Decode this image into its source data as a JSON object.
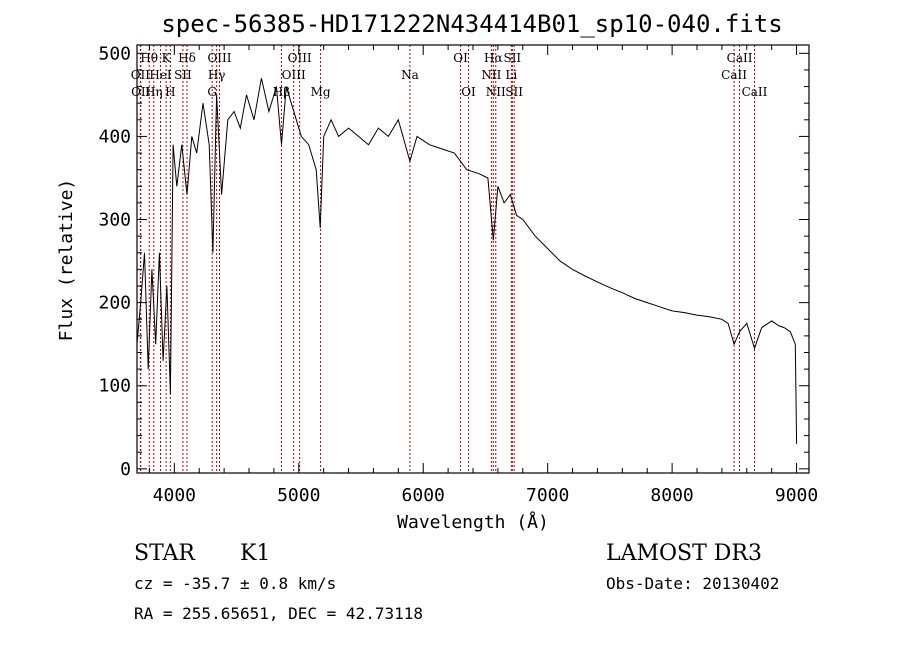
{
  "chart_data": {
    "type": "line",
    "title": "spec-56385-HD171222N434414B01_sp10-040.fits",
    "xlabel": "Wavelength (Å)",
    "ylabel": "Flux (relative)",
    "xlim": [
      3700,
      9100
    ],
    "ylim": [
      -5,
      510
    ],
    "xticks": [
      4000,
      5000,
      6000,
      7000,
      8000,
      9000
    ],
    "yticks": [
      0,
      100,
      200,
      300,
      400,
      500
    ],
    "series": [
      {
        "name": "spectrum",
        "x": [
          3700,
          3730,
          3760,
          3790,
          3820,
          3850,
          3880,
          3910,
          3940,
          3968,
          3990,
          4020,
          4060,
          4102,
          4140,
          4180,
          4230,
          4280,
          4310,
          4340,
          4380,
          4430,
          4480,
          4530,
          4580,
          4640,
          4700,
          4760,
          4820,
          4861,
          4900,
          4940,
          4980,
          5020,
          5080,
          5140,
          5172,
          5200,
          5260,
          5320,
          5400,
          5480,
          5560,
          5640,
          5720,
          5800,
          5893,
          5950,
          6050,
          6150,
          6250,
          6350,
          6450,
          6520,
          6563,
          6600,
          6650,
          6700,
          6750,
          6800,
          6900,
          7000,
          7100,
          7200,
          7300,
          7400,
          7500,
          7600,
          7700,
          7800,
          7900,
          8000,
          8100,
          8200,
          8300,
          8400,
          8450,
          8498,
          8542,
          8600,
          8662,
          8720,
          8800,
          8860,
          8900,
          8950,
          8990,
          9000
        ],
        "y": [
          150,
          200,
          260,
          120,
          240,
          150,
          260,
          130,
          220,
          90,
          390,
          340,
          390,
          330,
          400,
          380,
          440,
          390,
          260,
          450,
          330,
          420,
          430,
          410,
          450,
          420,
          470,
          430,
          460,
          390,
          460,
          440,
          420,
          400,
          390,
          360,
          290,
          400,
          420,
          400,
          410,
          400,
          390,
          410,
          400,
          420,
          370,
          400,
          390,
          385,
          380,
          360,
          355,
          350,
          275,
          340,
          320,
          330,
          305,
          300,
          280,
          265,
          250,
          240,
          232,
          225,
          218,
          212,
          205,
          200,
          195,
          190,
          188,
          185,
          183,
          180,
          175,
          150,
          165,
          175,
          145,
          170,
          178,
          172,
          170,
          165,
          150,
          30
        ]
      }
    ],
    "line_markers": [
      {
        "label": "Hθ",
        "wavelength": 3798,
        "row": 1
      },
      {
        "label": "OII",
        "wavelength": 3727,
        "row": 2
      },
      {
        "label": "OII",
        "wavelength": 3730,
        "row": 3
      },
      {
        "label": "Hη",
        "wavelength": 3835,
        "row": 3
      },
      {
        "label": "K",
        "wavelength": 3934,
        "row": 1
      },
      {
        "label": "HeI",
        "wavelength": 3889,
        "row": 2
      },
      {
        "label": "H",
        "wavelength": 3968,
        "row": 3
      },
      {
        "label": "SII",
        "wavelength": 4069,
        "row": 2
      },
      {
        "label": "Hδ",
        "wavelength": 4102,
        "row": 1
      },
      {
        "label": "OIII",
        "wavelength": 4363,
        "row": 1
      },
      {
        "label": "Hγ",
        "wavelength": 4340,
        "row": 2
      },
      {
        "label": "G",
        "wavelength": 4304,
        "row": 3
      },
      {
        "label": "OIII",
        "wavelength": 5007,
        "row": 1
      },
      {
        "label": "OIII",
        "wavelength": 4959,
        "row": 2
      },
      {
        "label": "Hβ",
        "wavelength": 4861,
        "row": 3
      },
      {
        "label": "Mg",
        "wavelength": 5175,
        "row": 3
      },
      {
        "label": "Na",
        "wavelength": 5893,
        "row": 2
      },
      {
        "label": "OI",
        "wavelength": 6300,
        "row": 1
      },
      {
        "label": "OI",
        "wavelength": 6364,
        "row": 3
      },
      {
        "label": "Hα",
        "wavelength": 6563,
        "row": 1
      },
      {
        "label": "NII",
        "wavelength": 6548,
        "row": 2
      },
      {
        "label": "NII",
        "wavelength": 6583,
        "row": 3
      },
      {
        "label": "SII",
        "wavelength": 6716,
        "row": 1
      },
      {
        "label": "Li",
        "wavelength": 6708,
        "row": 2
      },
      {
        "label": "SII",
        "wavelength": 6731,
        "row": 3
      },
      {
        "label": "CaII",
        "wavelength": 8542,
        "row": 1
      },
      {
        "label": "CaII",
        "wavelength": 8498,
        "row": 2
      },
      {
        "label": "CaII",
        "wavelength": 8662,
        "row": 3
      }
    ]
  },
  "info": {
    "object_class": "STAR",
    "subclass": "K1",
    "survey": "LAMOST DR3",
    "cz": "cz = -35.7 ± 0.8 km/s",
    "obs_date": "Obs-Date: 20130402",
    "coords": "RA = 255.65651, DEC =  42.73118"
  }
}
